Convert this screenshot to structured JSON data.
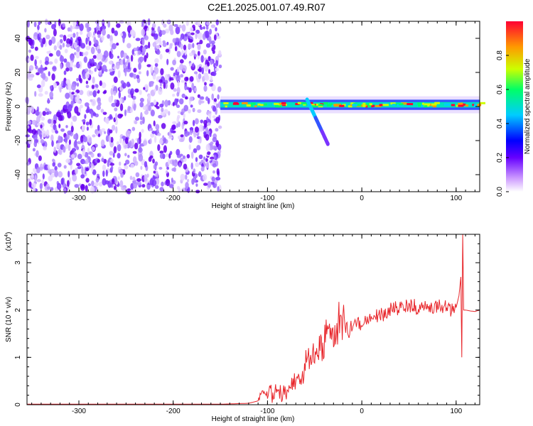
{
  "title": "C2E1.2025.001.07.49.R07",
  "chart_data": [
    {
      "type": "heatmap",
      "xlabel": "Height of straight line (km)",
      "ylabel": "Frequency (Hz)",
      "xlim": [
        -355,
        125
      ],
      "ylim": [
        -50,
        50
      ],
      "x_ticks": [
        -300,
        -200,
        -100,
        0,
        100
      ],
      "y_ticks": [
        -40,
        -20,
        0,
        20,
        40
      ],
      "noise_region_x": [
        -355,
        -150
      ],
      "signal_region_x": [
        -150,
        125
      ],
      "signal_center_freq": 1,
      "colorbar": {
        "label": "Normalized spectral amplitude",
        "range": [
          0,
          1
        ],
        "ticks": [
          "0.0",
          "0.2",
          "0.4",
          "0.6",
          "0.8"
        ],
        "colors": [
          "#ffffff",
          "#cc99ff",
          "#6600ff",
          "#0000ff",
          "#00ccff",
          "#00ff66",
          "#ccff00",
          "#ff9900",
          "#ff0033"
        ]
      }
    },
    {
      "type": "line",
      "xlabel": "Height of straight line (km)",
      "ylabel": "SNR (10 * v/v)",
      "y_multiplier": "(x10",
      "y_multiplier_exp": "4",
      "y_multiplier_close": ")",
      "xlim": [
        -355,
        125
      ],
      "ylim": [
        0,
        3.6
      ],
      "x_ticks": [
        -300,
        -200,
        -100,
        0,
        100
      ],
      "y_ticks": [
        0,
        1,
        2,
        3
      ],
      "color": "#e8262b",
      "series": [
        {
          "x": [
            -355,
            -200,
            -150,
            -120,
            -110,
            -105,
            -100,
            -97,
            -95,
            -90,
            -85,
            -80,
            -75,
            -70,
            -65,
            -60,
            -55,
            -50,
            -45,
            -40,
            -35,
            -30,
            -25,
            -20,
            -15,
            -10,
            -5,
            0,
            5,
            10,
            15,
            20,
            25,
            30,
            35,
            40,
            45,
            50,
            55,
            60,
            65,
            70,
            75,
            80,
            85,
            90,
            95,
            100,
            103,
            105,
            106,
            107,
            108,
            110,
            115,
            120,
            125
          ],
          "y": [
            0.01,
            0.01,
            0.01,
            0.03,
            0.08,
            0.3,
            0.2,
            0.45,
            0.15,
            0.3,
            0.2,
            0.25,
            0.45,
            0.5,
            0.6,
            0.8,
            1.0,
            0.9,
            1.3,
            1.2,
            1.6,
            1.4,
            1.7,
            1.6,
            1.5,
            1.7,
            1.8,
            1.6,
            1.75,
            1.8,
            1.9,
            1.85,
            1.95,
            2.0,
            2.05,
            2.0,
            2.1,
            2.05,
            2.1,
            2.0,
            2.1,
            2.05,
            2.0,
            2.1,
            2.05,
            2.1,
            2.0,
            2.05,
            2.3,
            2.7,
            1.0,
            3.6,
            2.0,
            2.0,
            1.98,
            1.97,
            2.0
          ]
        }
      ]
    }
  ]
}
